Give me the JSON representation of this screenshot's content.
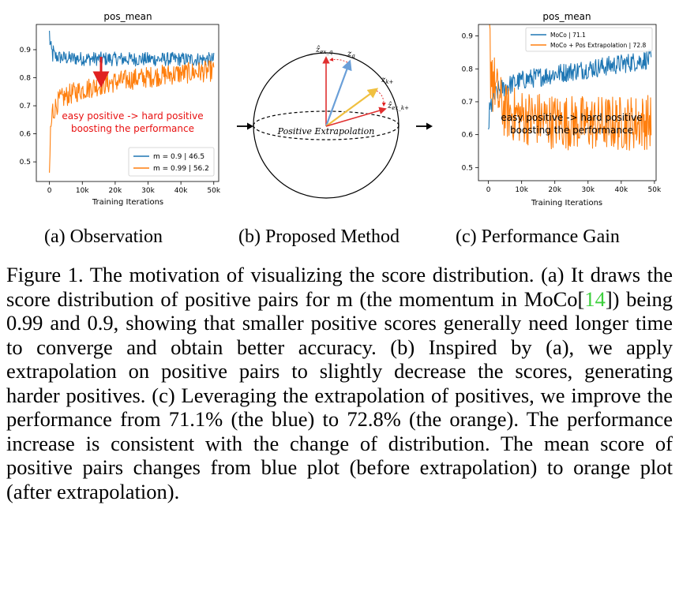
{
  "charts": {
    "chart_data": [
      {
        "type": "line",
        "title": "pos_mean",
        "xlabel": "Training Iterations",
        "ylabel": "",
        "xlim": [
          -4000,
          51500
        ],
        "ylim": [
          0.43,
          0.99
        ],
        "xticks": [
          0,
          10000,
          20000,
          30000,
          40000,
          50000
        ],
        "xticklabels": [
          "0",
          "10k",
          "20k",
          "30k",
          "40k",
          "50k"
        ],
        "yticks": [
          0.5,
          0.6,
          0.7,
          0.8,
          0.9
        ],
        "yticklabels": [
          "0.5",
          "0.6",
          "0.7",
          "0.8",
          "0.9"
        ],
        "legend": "bottom-right",
        "annotation": "easy positive -> hard positive\nboosting the performance",
        "series": [
          {
            "name": "m = 0.9 | 46.5",
            "color": "#1f77b4",
            "x": [
              0,
              500,
              2000,
              5000,
              10000,
              20000,
              30000,
              40000,
              50000
            ],
            "y": [
              0.955,
              0.89,
              0.875,
              0.87,
              0.868,
              0.867,
              0.866,
              0.866,
              0.865
            ],
            "noise": 0.025
          },
          {
            "name": "m = 0.99 | 56.2",
            "color": "#ff7f0e",
            "x": [
              0,
              300,
              1000,
              3000,
              6000,
              10000,
              15000,
              20000,
              25000,
              30000,
              35000,
              40000,
              45000,
              50000
            ],
            "y": [
              0.44,
              0.6,
              0.68,
              0.72,
              0.74,
              0.757,
              0.773,
              0.785,
              0.795,
              0.802,
              0.81,
              0.815,
              0.82,
              0.825
            ],
            "noise": 0.038
          }
        ]
      },
      {
        "type": "line",
        "title": "pos_mean",
        "xlabel": "Training Iterations",
        "ylabel": "",
        "xlim": [
          -3000,
          50500
        ],
        "ylim": [
          0.46,
          0.935
        ],
        "xticks": [
          0,
          10000,
          20000,
          30000,
          40000,
          50000
        ],
        "xticklabels": [
          "0",
          "10k",
          "20k",
          "30k",
          "40k",
          "50k"
        ],
        "yticks": [
          0.5,
          0.6,
          0.7,
          0.8,
          0.9
        ],
        "yticklabels": [
          "0.5",
          "0.6",
          "0.7",
          "0.8",
          "0.9"
        ],
        "legend": "top-right",
        "annotation": "easy positive -> hard positive\nboosting the performance",
        "series": [
          {
            "name": "MoCo | 71.1",
            "color": "#1f77b4",
            "x": [
              0,
              1000,
              3000,
              6000,
              10000,
              20000,
              30000,
              40000,
              49000
            ],
            "y": [
              0.63,
              0.7,
              0.735,
              0.75,
              0.765,
              0.785,
              0.8,
              0.815,
              0.83
            ],
            "noise": 0.03
          },
          {
            "name": "MoCo + Pos Extrapolation | 72.8",
            "color": "#ff7f0e",
            "x": [
              0,
              400,
              1500,
              3000,
              5000,
              10000,
              20000,
              30000,
              40000,
              49000
            ],
            "y": [
              0.91,
              0.85,
              0.77,
              0.71,
              0.67,
              0.655,
              0.64,
              0.635,
              0.635,
              0.64
            ],
            "noise": 0.085
          }
        ]
      }
    ],
    "diagram": {
      "label": "Positive  Extrapolation",
      "vectors": {
        "zex_q": "ẑ",
        "zex_q_sub": "ex_q",
        "zq": "z",
        "zq_sub": "q",
        "zk": "z",
        "zk_sub": "k+",
        "zex_k": "ẑ",
        "zex_k_sub": "ex_k+"
      }
    }
  },
  "sublabels": {
    "a": "(a)  Observation",
    "b": "(b)  Proposed Method",
    "c": "(c)  Performance Gain"
  },
  "caption": {
    "before_cite": "Figure 1. The motivation of visualizing the score distribution. (a) It draws the score distribution of positive pairs for m (the momentum in MoCo[",
    "cite": "14",
    "after_cite": "]) being 0.99 and 0.9, showing that smaller positive scores generally need longer time to converge and obtain better accuracy.  (b) Inspired by (a), we apply extrapolation on positive pairs to slightly decrease the scores, generating harder positives. (c) Leveraging the extrapolation of positives, we improve the performance from 71.1% (the blue) to 72.8% (the orange).  The performance increase is consistent with the change of distribution. The mean score of positive pairs changes from blue plot (before extrapolation) to orange plot (after extrapolation)."
  }
}
